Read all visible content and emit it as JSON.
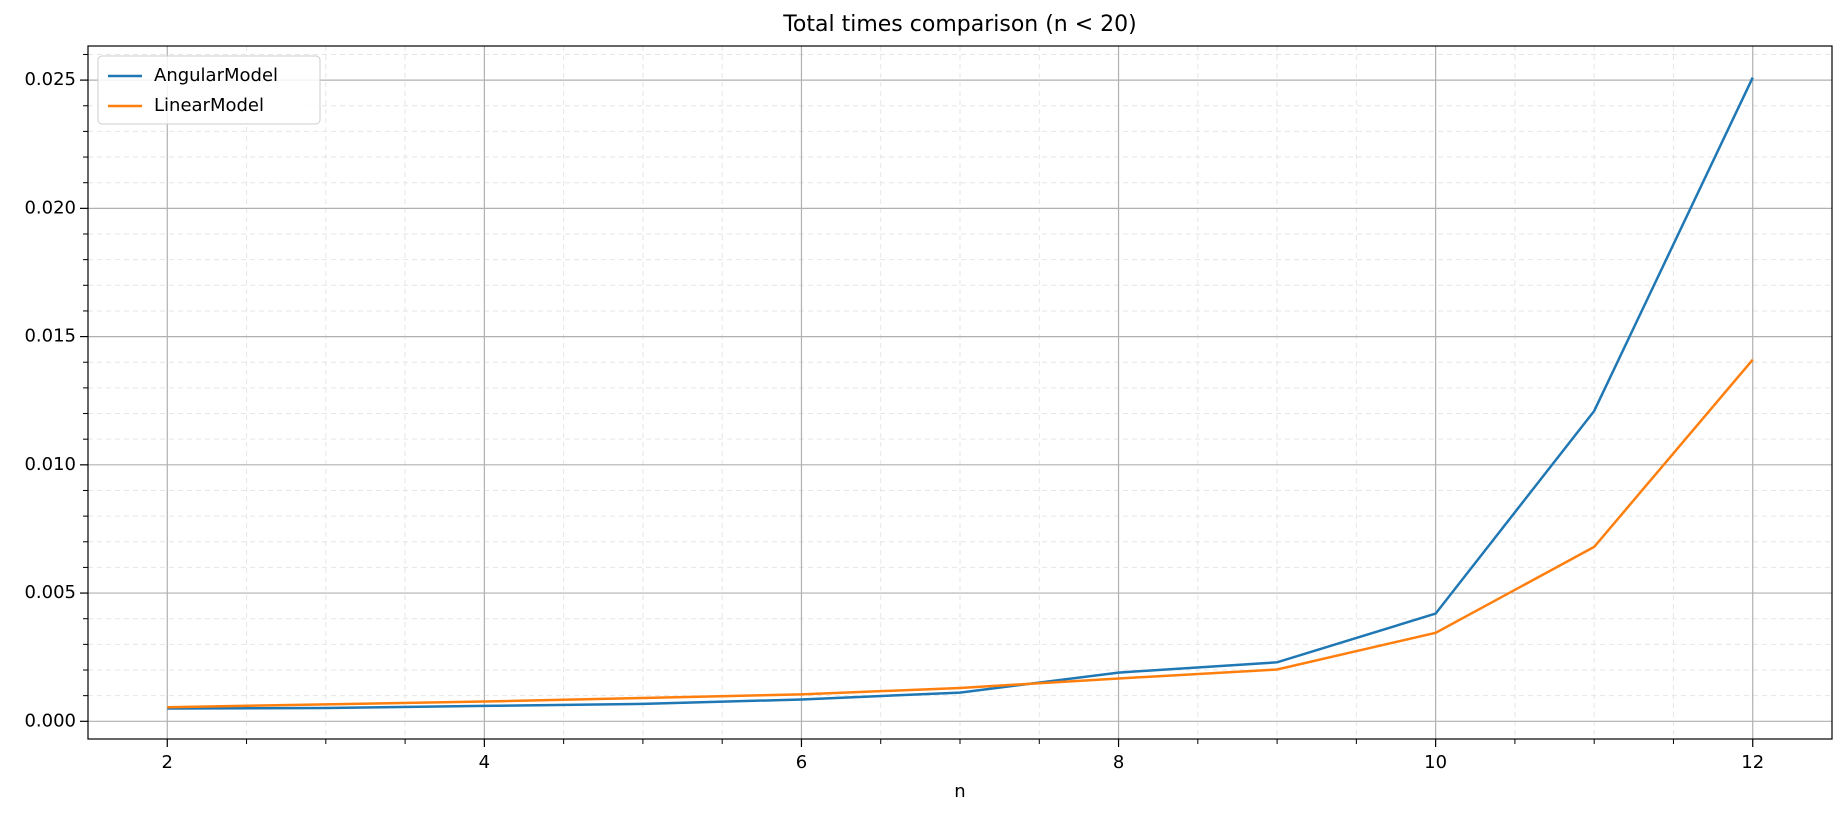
{
  "chart_data": {
    "type": "line",
    "title": "Total times comparison (n < 20)",
    "xlabel": "n",
    "x": [
      2,
      3,
      4,
      5,
      6,
      7,
      8,
      9,
      10,
      11,
      12
    ],
    "series": [
      {
        "name": "AngularModel",
        "color": "#1f77b4",
        "values": [
          0.0005,
          0.00052,
          0.0006,
          0.00068,
          0.00085,
          0.00112,
          0.0019,
          0.0023,
          0.0042,
          0.0121,
          0.0251
        ]
      },
      {
        "name": "LinearModel",
        "color": "#ff7f0e",
        "values": [
          0.00055,
          0.00066,
          0.00077,
          0.00091,
          0.00105,
          0.0013,
          0.00167,
          0.00202,
          0.00345,
          0.0068,
          0.0141
        ]
      }
    ],
    "xlim": [
      1.5,
      12.5
    ],
    "xticks": [
      2,
      4,
      6,
      8,
      10,
      12
    ],
    "xminorticks": [
      2.5,
      3,
      3.5,
      4.5,
      5,
      5.5,
      6.5,
      7,
      7.5,
      8.5,
      9,
      9.5,
      10.5,
      11,
      11.5
    ],
    "ylim": [
      -0.00069,
      0.02633
    ],
    "yticks": [
      {
        "value": 0,
        "label": "0.000"
      },
      0.005,
      {
        "value": 0.01,
        "label": "0.010"
      },
      0.015,
      {
        "value": 0.02,
        "label": "0.020"
      },
      0.025
    ],
    "yminorticks": [
      0.001,
      0.002,
      0.003,
      0.004,
      0.006,
      0.007,
      0.008,
      0.009,
      0.011,
      0.012,
      0.013,
      0.014,
      0.016,
      0.017,
      0.018,
      0.019,
      0.021,
      0.022,
      0.023,
      0.024,
      0.026
    ],
    "grid": true,
    "minor_grid": true,
    "legend": "upper left"
  }
}
